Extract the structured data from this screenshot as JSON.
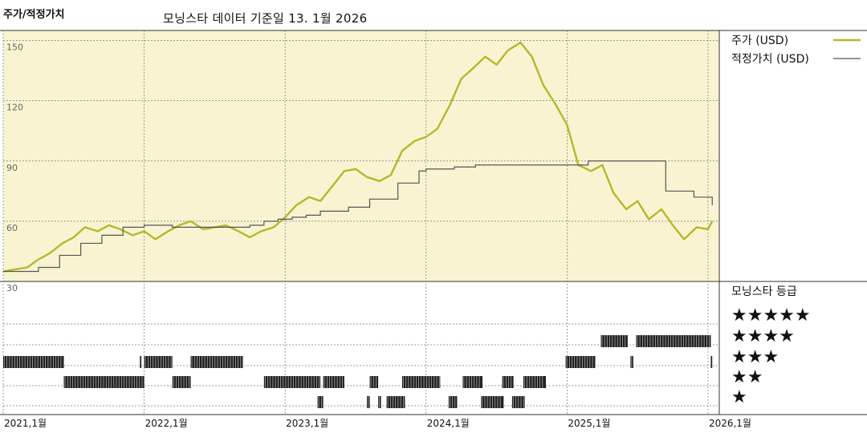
{
  "header": {
    "corner_title": "주가/적정가치",
    "data_source": "모닝스타 데이터 기준일 13. 1월 2026"
  },
  "colors": {
    "price": "#b5b82a",
    "fair_value": "#555555",
    "plot_background": "#f8f4d2",
    "rating_bars": "#222222",
    "grid": "#777777"
  },
  "chart_data": {
    "type": "line",
    "title": "",
    "xlabel": "",
    "ylabel": "",
    "ylim": [
      30,
      155
    ],
    "y_ticks": [
      "150",
      "120",
      "90",
      "60",
      "30"
    ],
    "y_tick_values": [
      150,
      120,
      90,
      60,
      30
    ],
    "x_ticks": [
      "2021,1월",
      "2022,1월",
      "2023,1월",
      "2024,1월",
      "2025,1월",
      "2026,1월"
    ],
    "x_tick_values": [
      2021.0,
      2022.0,
      2023.0,
      2024.0,
      2025.0,
      2026.0
    ],
    "x_range": [
      2021.0,
      2026.08
    ],
    "grid": true,
    "legend_position": "right",
    "series": [
      {
        "name": "주가 (USD)",
        "color": "#b5b82a",
        "x": [
          2021.0,
          2021.08,
          2021.17,
          2021.25,
          2021.33,
          2021.42,
          2021.5,
          2021.58,
          2021.67,
          2021.75,
          2021.83,
          2021.92,
          2022.0,
          2022.08,
          2022.17,
          2022.25,
          2022.33,
          2022.42,
          2022.5,
          2022.58,
          2022.67,
          2022.75,
          2022.83,
          2022.92,
          2023.0,
          2023.08,
          2023.17,
          2023.25,
          2023.33,
          2023.42,
          2023.5,
          2023.58,
          2023.67,
          2023.75,
          2023.83,
          2023.92,
          2024.0,
          2024.08,
          2024.17,
          2024.25,
          2024.33,
          2024.42,
          2024.5,
          2024.58,
          2024.67,
          2024.75,
          2024.83,
          2024.92,
          2025.0,
          2025.08,
          2025.17,
          2025.25,
          2025.33,
          2025.42,
          2025.5,
          2025.58,
          2025.67,
          2025.75,
          2025.83,
          2025.92,
          2026.0,
          2026.03
        ],
        "y": [
          35,
          36,
          37,
          41,
          44,
          49,
          52,
          57,
          55,
          58,
          56,
          53,
          55,
          51,
          55,
          58,
          60,
          56,
          57,
          58,
          55,
          52,
          55,
          57,
          62,
          68,
          72,
          70,
          77,
          85,
          86,
          82,
          80,
          83,
          95,
          100,
          102,
          106,
          118,
          131,
          136,
          142,
          138,
          145,
          149,
          142,
          128,
          118,
          108,
          88,
          85,
          88,
          74,
          66,
          70,
          61,
          66,
          58,
          51,
          57,
          56,
          60
        ],
        "y_labels_note": ""
      },
      {
        "name": "적정가치 (USD)",
        "color": "#555555",
        "x": [
          2021.0,
          2021.25,
          2021.4,
          2021.55,
          2021.7,
          2021.85,
          2022.0,
          2022.2,
          2022.4,
          2022.6,
          2022.75,
          2022.85,
          2022.95,
          2023.05,
          2023.15,
          2023.25,
          2023.45,
          2023.6,
          2023.8,
          2023.95,
          2024.0,
          2024.2,
          2024.35,
          2024.5,
          2024.7,
          2024.9,
          2025.0,
          2025.15,
          2025.35,
          2025.6,
          2025.7,
          2025.9,
          2026.03
        ],
        "y": [
          35,
          37,
          43,
          49,
          53,
          57,
          58,
          57,
          57,
          57,
          58,
          60,
          61,
          62,
          63,
          65,
          67,
          71,
          79,
          85,
          86,
          87,
          88,
          88,
          88,
          88,
          88,
          90,
          90,
          90,
          75,
          72,
          68
        ]
      }
    ],
    "rating": {
      "title": "모닝스타 등급",
      "levels": [
        "★★★★★",
        "★★★★",
        "★★★",
        "★★",
        "★"
      ],
      "periods": [
        {
          "stars": 3,
          "start": 2021.0,
          "end": 2021.43
        },
        {
          "stars": 2,
          "start": 2021.43,
          "end": 2022.0
        },
        {
          "stars": 3,
          "start": 2021.97,
          "end": 2021.98
        },
        {
          "stars": 3,
          "start": 2022.0,
          "end": 2022.2
        },
        {
          "stars": 2,
          "start": 2022.2,
          "end": 2022.33
        },
        {
          "stars": 3,
          "start": 2022.33,
          "end": 2022.7
        },
        {
          "stars": 2,
          "start": 2022.85,
          "end": 2023.25
        },
        {
          "stars": 1,
          "start": 2023.23,
          "end": 2023.27
        },
        {
          "stars": 2,
          "start": 2023.27,
          "end": 2023.42
        },
        {
          "stars": 1,
          "start": 2023.58,
          "end": 2023.6
        },
        {
          "stars": 2,
          "start": 2023.6,
          "end": 2023.66
        },
        {
          "stars": 1,
          "start": 2023.66,
          "end": 2023.68
        },
        {
          "stars": 1,
          "start": 2023.72,
          "end": 2023.85
        },
        {
          "stars": 2,
          "start": 2023.83,
          "end": 2024.1
        },
        {
          "stars": 1,
          "start": 2024.16,
          "end": 2024.22
        },
        {
          "stars": 2,
          "start": 2024.26,
          "end": 2024.4
        },
        {
          "stars": 1,
          "start": 2024.39,
          "end": 2024.55
        },
        {
          "stars": 2,
          "start": 2024.54,
          "end": 2024.62
        },
        {
          "stars": 1,
          "start": 2024.61,
          "end": 2024.7
        },
        {
          "stars": 2,
          "start": 2024.69,
          "end": 2024.85
        },
        {
          "stars": 3,
          "start": 2024.99,
          "end": 2025.2
        },
        {
          "stars": 4,
          "start": 2025.24,
          "end": 2025.43
        },
        {
          "stars": 3,
          "start": 2025.45,
          "end": 2025.47
        },
        {
          "stars": 4,
          "start": 2025.49,
          "end": 2026.02
        },
        {
          "stars": 3,
          "start": 2026.02,
          "end": 2026.03
        }
      ]
    }
  }
}
